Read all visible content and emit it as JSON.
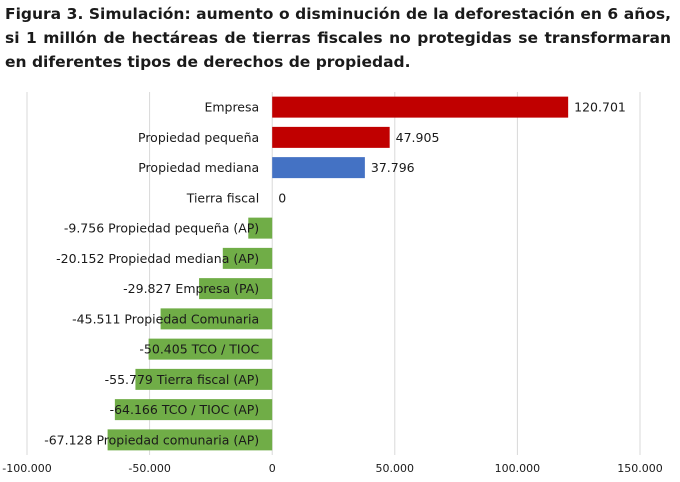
{
  "figure_title": "Figura 3. Simulación: aumento o disminución de la deforestación en 6 años, si 1 millón de hectáreas de tierras fiscales no protegidas se transformaran en diferentes tipos de derechos de propiedad.",
  "colors": {
    "increase_red": "#c00000",
    "increase_blue": "#4472c4",
    "decrease_green": "#70ad47",
    "grid": "#d9d9d9"
  },
  "chart_data": {
    "type": "bar",
    "orientation": "horizontal",
    "title": "Figura 3. Simulación: aumento o disminución de la deforestación en 6 años, si 1 millón de hectáreas de tierras fiscales no protegidas se transformaran en diferentes tipos de derechos de propiedad.",
    "xlim": [
      -100000,
      150000
    ],
    "x_ticks": [
      -100000,
      -50000,
      0,
      50000,
      100000,
      150000
    ],
    "x_tick_labels": [
      "-100.000",
      "-50.000",
      "0",
      "50.000",
      "100.000",
      "150.000"
    ],
    "grid": true,
    "categories": [
      "Empresa",
      "Propiedad pequeña",
      "Propiedad mediana",
      "Tierra fiscal",
      "Propiedad pequeña (AP)",
      "Propiedad mediana (AP)",
      "Empresa (PA)",
      "Propiedad Comunaria",
      "TCO / TIOC",
      "Tierra fiscal (AP)",
      "TCO / TIOC (AP)",
      "Propiedad comunaria (AP)"
    ],
    "values": [
      120701,
      47905,
      37796,
      0,
      -9756,
      -20152,
      -29827,
      -45511,
      -50405,
      -55779,
      -64166,
      -67128
    ],
    "value_labels": [
      "120.701",
      "47.905",
      "37.796",
      "0",
      "-9.756",
      "-20.152",
      "-29.827",
      "-45.511",
      "-50.405",
      "-55.779",
      "-64.166",
      "-67.128"
    ],
    "bar_colors": [
      "#c00000",
      "#c00000",
      "#4472c4",
      "#70ad47",
      "#70ad47",
      "#70ad47",
      "#70ad47",
      "#70ad47",
      "#70ad47",
      "#70ad47",
      "#70ad47",
      "#70ad47"
    ]
  }
}
